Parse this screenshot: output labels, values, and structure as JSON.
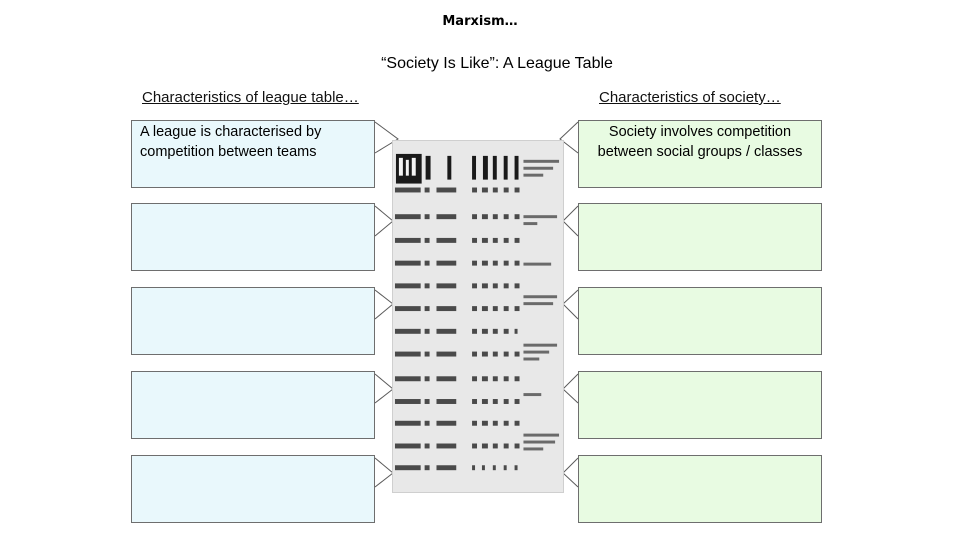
{
  "slide": {
    "title": "Marxism…",
    "subtitle": "“Society Is Like”: A League Table"
  },
  "columns": {
    "left_heading": "Characteristics of league table…",
    "right_heading": "Characteristics of society…"
  },
  "left_boxes": [
    "A league is characterised by competition between teams",
    "",
    "",
    "",
    ""
  ],
  "right_boxes": [
    "Society involves competition between social groups / classes",
    "",
    "",
    "",
    ""
  ],
  "colors": {
    "left_box_fill": "#e9f8fc",
    "right_box_fill": "#e8fbe2",
    "box_border": "#6e6e6e",
    "table_background": "#e8e8e8"
  }
}
